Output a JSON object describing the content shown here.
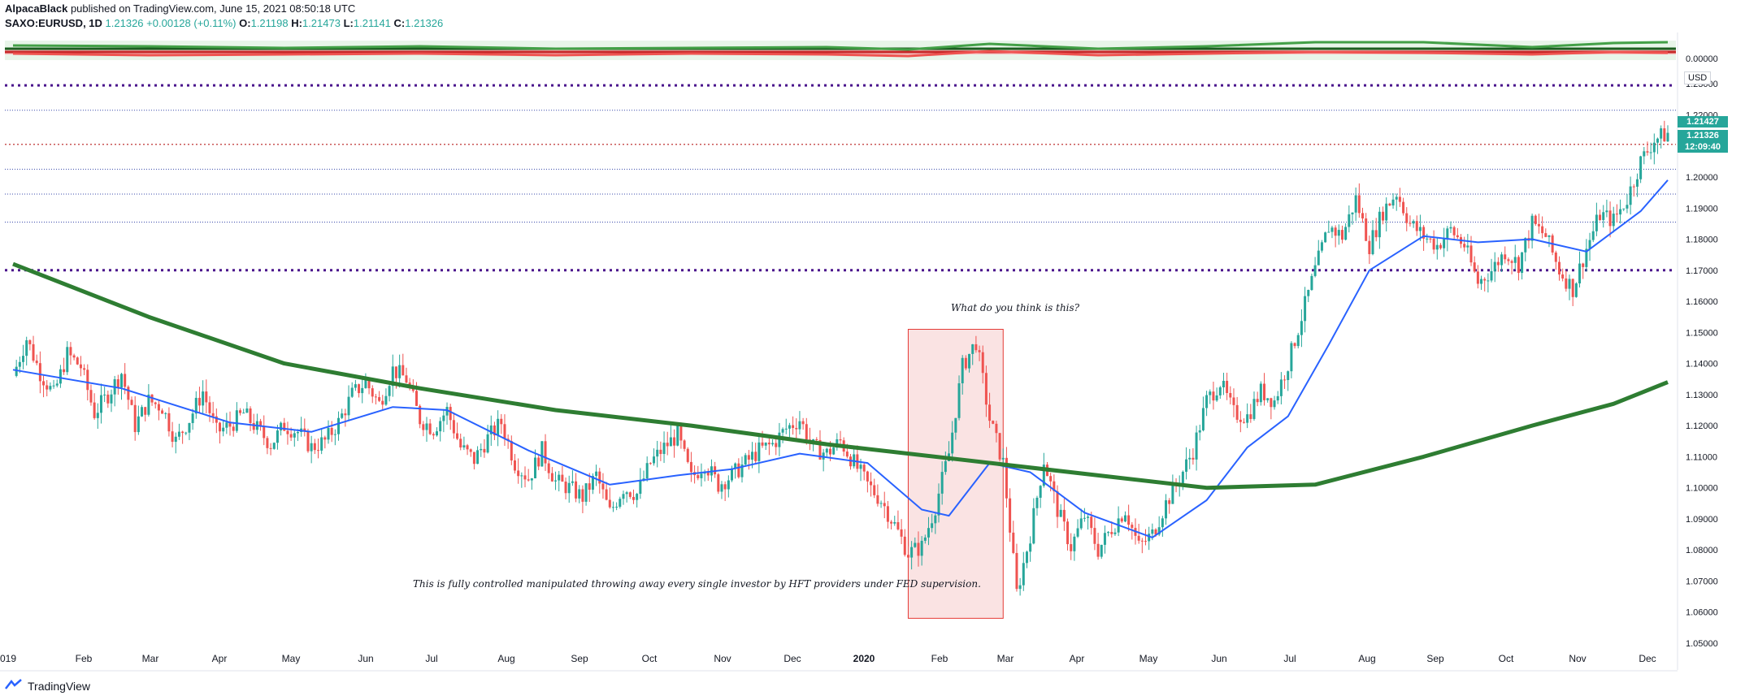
{
  "header": {
    "author": "AlpacaBlack",
    "published": "published on TradingView.com, June 15, 2021 08:50:18 UTC",
    "symbol": "SAXO:EURUSD, 1D",
    "last": "1.21326",
    "change": "+0.00128 (+0.11%)",
    "o_label": "O:",
    "o": "1.21198",
    "h_label": "H:",
    "h": "1.21473",
    "l_label": "L:",
    "l": "1.21141",
    "c_label": "C:",
    "c": "1.21326"
  },
  "price_axis": {
    "currency": "USD",
    "tag_high": "1.21427",
    "tag_last": "1.21326",
    "tag_time": "12:09:40",
    "oscillator_zero": "0.00000"
  },
  "annotations": {
    "question": "What do you think is this?",
    "statement": "This is fully controlled manipulated throwing away every single investor by HFT providers under FED supervision."
  },
  "footer": {
    "brand": "TradingView"
  },
  "colors": {
    "up": "#26a69a",
    "down": "#ef5350",
    "ema_slow": "#2e7d32",
    "ema_fast": "#2962ff",
    "level": "#4a148c",
    "box_fill": "#f8d7d7",
    "box_stroke": "#e53935"
  },
  "chart_data": {
    "type": "line",
    "title": "SAXO:EURUSD, 1D",
    "xlabel": "",
    "ylabel": "",
    "ylim": [
      1.05,
      1.235
    ],
    "x_tick_labels": [
      "019",
      "Feb",
      "Mar",
      "Apr",
      "May",
      "Jun",
      "Jul",
      "Aug",
      "Sep",
      "Oct",
      "Nov",
      "Dec",
      "2020",
      "Feb",
      "Mar",
      "Apr",
      "May",
      "Jun",
      "Jul",
      "Aug",
      "Sep",
      "Oct",
      "Nov",
      "Dec"
    ],
    "y_tick_labels": [
      "1.05000",
      "1.06000",
      "1.07000",
      "1.08000",
      "1.09000",
      "1.10000",
      "1.11000",
      "1.12000",
      "1.13000",
      "1.14000",
      "1.15000",
      "1.16000",
      "1.17000",
      "1.18000",
      "1.19000",
      "1.20000",
      "1.22000",
      "1.23000"
    ],
    "y_ticks": [
      1.05,
      1.06,
      1.07,
      1.08,
      1.09,
      1.1,
      1.11,
      1.12,
      1.13,
      1.14,
      1.15,
      1.16,
      1.17,
      1.18,
      1.19,
      1.2,
      1.22,
      1.23
    ],
    "horizontal_levels": [
      {
        "value": 1.2295,
        "style": "dotted-bold"
      },
      {
        "value": 1.2215,
        "style": "dotted-thin"
      },
      {
        "value": 1.2105,
        "style": "dotted-red"
      },
      {
        "value": 1.2025,
        "style": "dotted-thin"
      },
      {
        "value": 1.1945,
        "style": "dotted-thin"
      },
      {
        "value": 1.1855,
        "style": "dotted-thin"
      },
      {
        "value": 1.17,
        "style": "dotted-bold"
      }
    ],
    "price_path": [
      [
        0,
        1.136
      ],
      [
        1,
        1.148
      ],
      [
        2,
        1.137
      ],
      [
        3,
        1.13
      ],
      [
        4,
        1.143
      ],
      [
        5,
        1.139
      ],
      [
        6,
        1.124
      ],
      [
        7,
        1.13
      ],
      [
        8,
        1.137
      ],
      [
        9,
        1.12
      ],
      [
        10,
        1.128
      ],
      [
        11,
        1.126
      ],
      [
        12,
        1.115
      ],
      [
        13,
        1.122
      ],
      [
        14,
        1.131
      ],
      [
        15,
        1.118
      ],
      [
        16,
        1.12
      ],
      [
        17,
        1.124
      ],
      [
        18,
        1.119
      ],
      [
        19,
        1.114
      ],
      [
        20,
        1.12
      ],
      [
        21,
        1.118
      ],
      [
        22,
        1.113
      ],
      [
        23,
        1.115
      ],
      [
        24,
        1.121
      ],
      [
        25,
        1.13
      ],
      [
        26,
        1.134
      ],
      [
        27,
        1.127
      ],
      [
        28,
        1.138
      ],
      [
        29,
        1.135
      ],
      [
        30,
        1.122
      ],
      [
        31,
        1.119
      ],
      [
        32,
        1.125
      ],
      [
        33,
        1.113
      ],
      [
        34,
        1.109
      ],
      [
        35,
        1.116
      ],
      [
        36,
        1.121
      ],
      [
        37,
        1.108
      ],
      [
        38,
        1.103
      ],
      [
        39,
        1.112
      ],
      [
        40,
        1.102
      ],
      [
        41,
        1.1
      ],
      [
        42,
        1.097
      ],
      [
        43,
        1.104
      ],
      [
        44,
        1.092
      ],
      [
        45,
        1.1
      ],
      [
        46,
        1.098
      ],
      [
        47,
        1.108
      ],
      [
        48,
        1.113
      ],
      [
        49,
        1.117
      ],
      [
        50,
        1.103
      ],
      [
        51,
        1.108
      ],
      [
        52,
        1.101
      ],
      [
        53,
        1.104
      ],
      [
        54,
        1.108
      ],
      [
        55,
        1.112
      ],
      [
        56,
        1.114
      ],
      [
        57,
        1.119
      ],
      [
        58,
        1.122
      ],
      [
        59,
        1.113
      ],
      [
        60,
        1.111
      ],
      [
        61,
        1.115
      ],
      [
        62,
        1.108
      ],
      [
        63,
        1.101
      ],
      [
        64,
        1.096
      ],
      [
        65,
        1.088
      ],
      [
        66,
        1.079
      ],
      [
        67,
        1.081
      ],
      [
        68,
        1.094
      ],
      [
        69,
        1.111
      ],
      [
        70,
        1.139
      ],
      [
        71,
        1.147
      ],
      [
        72,
        1.122
      ],
      [
        73,
        1.108
      ],
      [
        74,
        1.066
      ],
      [
        75,
        1.085
      ],
      [
        76,
        1.109
      ],
      [
        77,
        1.093
      ],
      [
        78,
        1.081
      ],
      [
        79,
        1.091
      ],
      [
        80,
        1.08
      ],
      [
        81,
        1.087
      ],
      [
        82,
        1.093
      ],
      [
        83,
        1.081
      ],
      [
        84,
        1.085
      ],
      [
        85,
        1.095
      ],
      [
        86,
        1.103
      ],
      [
        87,
        1.112
      ],
      [
        88,
        1.128
      ],
      [
        89,
        1.134
      ],
      [
        90,
        1.124
      ],
      [
        91,
        1.123
      ],
      [
        92,
        1.131
      ],
      [
        93,
        1.128
      ],
      [
        94,
        1.14
      ],
      [
        95,
        1.155
      ],
      [
        96,
        1.17
      ],
      [
        97,
        1.184
      ],
      [
        98,
        1.181
      ],
      [
        99,
        1.193
      ],
      [
        100,
        1.178
      ],
      [
        101,
        1.189
      ],
      [
        102,
        1.195
      ],
      [
        103,
        1.185
      ],
      [
        104,
        1.181
      ],
      [
        105,
        1.178
      ],
      [
        106,
        1.183
      ],
      [
        107,
        1.178
      ],
      [
        108,
        1.166
      ],
      [
        109,
        1.17
      ],
      [
        110,
        1.176
      ],
      [
        111,
        1.172
      ],
      [
        112,
        1.185
      ],
      [
        113,
        1.181
      ],
      [
        114,
        1.17
      ],
      [
        115,
        1.164
      ],
      [
        116,
        1.177
      ],
      [
        117,
        1.188
      ],
      [
        118,
        1.186
      ],
      [
        119,
        1.193
      ],
      [
        120,
        1.205
      ],
      [
        121,
        1.212
      ],
      [
        122,
        1.214
      ]
    ],
    "series": [
      {
        "name": "",
        "role": "ema_fast",
        "values": [
          [
            0,
            1.138
          ],
          [
            8,
            1.132
          ],
          [
            16,
            1.121
          ],
          [
            22,
            1.118
          ],
          [
            28,
            1.126
          ],
          [
            32,
            1.125
          ],
          [
            38,
            1.112
          ],
          [
            44,
            1.101
          ],
          [
            49,
            1.104
          ],
          [
            53,
            1.106
          ],
          [
            58,
            1.111
          ],
          [
            63,
            1.108
          ],
          [
            67,
            1.093
          ],
          [
            69,
            1.091
          ],
          [
            72,
            1.108
          ],
          [
            75,
            1.105
          ],
          [
            79,
            1.092
          ],
          [
            84,
            1.084
          ],
          [
            88,
            1.096
          ],
          [
            91,
            1.113
          ],
          [
            94,
            1.123
          ],
          [
            97,
            1.146
          ],
          [
            100,
            1.17
          ],
          [
            104,
            1.181
          ],
          [
            108,
            1.179
          ],
          [
            112,
            1.18
          ],
          [
            116,
            1.176
          ],
          [
            120,
            1.189
          ],
          [
            122,
            1.199
          ]
        ]
      },
      {
        "name": "",
        "role": "ema_slow",
        "values": [
          [
            0,
            1.172
          ],
          [
            10,
            1.155
          ],
          [
            20,
            1.14
          ],
          [
            30,
            1.132
          ],
          [
            40,
            1.125
          ],
          [
            50,
            1.12
          ],
          [
            60,
            1.114
          ],
          [
            70,
            1.109
          ],
          [
            80,
            1.104
          ],
          [
            88,
            1.1
          ],
          [
            96,
            1.101
          ],
          [
            104,
            1.11
          ],
          [
            112,
            1.12
          ],
          [
            118,
            1.127
          ],
          [
            122,
            1.134
          ]
        ]
      }
    ],
    "oscillator": {
      "zero_label": "0.00000",
      "green_line": [
        [
          0,
          0.6
        ],
        [
          10,
          0.5
        ],
        [
          20,
          0.3
        ],
        [
          30,
          0.5
        ],
        [
          40,
          0.2
        ],
        [
          50,
          0.3
        ],
        [
          60,
          0.4
        ],
        [
          66,
          0.1
        ],
        [
          72,
          0.8
        ],
        [
          80,
          0.2
        ],
        [
          88,
          0.5
        ],
        [
          96,
          1.0
        ],
        [
          104,
          1.0
        ],
        [
          112,
          0.4
        ],
        [
          118,
          0.9
        ],
        [
          122,
          1.0
        ]
      ],
      "red_line": [
        [
          0,
          -0.4
        ],
        [
          10,
          -0.6
        ],
        [
          20,
          -0.5
        ],
        [
          30,
          -0.4
        ],
        [
          40,
          -0.6
        ],
        [
          50,
          -0.4
        ],
        [
          60,
          -0.5
        ],
        [
          66,
          -0.7
        ],
        [
          72,
          -0.1
        ],
        [
          80,
          -0.6
        ],
        [
          88,
          -0.4
        ],
        [
          96,
          -0.2
        ],
        [
          104,
          -0.3
        ],
        [
          112,
          -0.5
        ],
        [
          118,
          -0.2
        ],
        [
          122,
          -0.3
        ]
      ]
    },
    "highlight_box": {
      "x_from": 66,
      "x_to": 73,
      "y_from": 1.058,
      "y_to": 1.151
    },
    "grid": false,
    "legend": "none"
  }
}
